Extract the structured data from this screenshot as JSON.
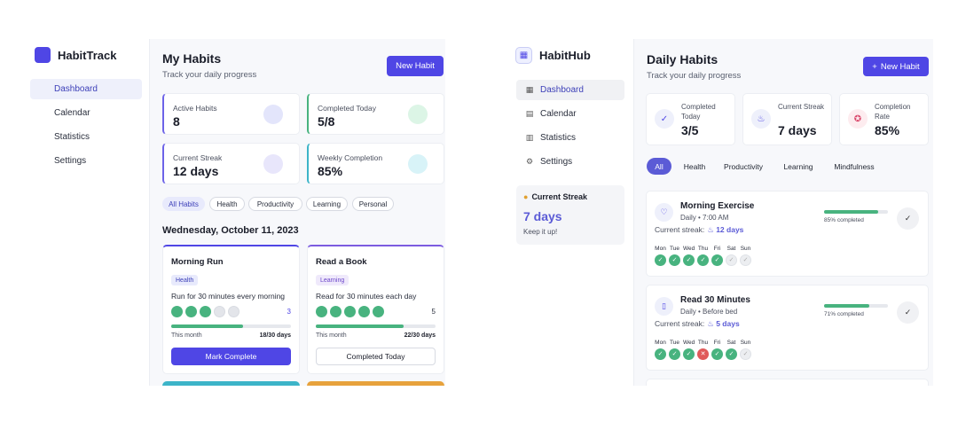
{
  "left": {
    "brand": "HabitTrack",
    "nav": [
      "Dashboard",
      "Calendar",
      "Statistics",
      "Settings"
    ],
    "title": "My Habits",
    "subtitle": "Track your daily progress",
    "new_button": "New Habit",
    "stats": [
      {
        "label": "Active Habits",
        "value": "8",
        "accent": "#6d63e8",
        "circle": "#e3e5fb"
      },
      {
        "label": "Completed Today",
        "value": "5/8",
        "accent": "#48b37f",
        "circle": "#dcf5e6"
      },
      {
        "label": "Current Streak",
        "value": "12 days",
        "accent": "#6d63e8",
        "circle": "#e8e6fb"
      },
      {
        "label": "Weekly Completion",
        "value": "85%",
        "accent": "#3cb4c8",
        "circle": "#d8f3f8"
      }
    ],
    "filters": [
      "All Habits",
      "Health",
      "Productivity",
      "Learning",
      "Personal"
    ],
    "date": "Wednesday, October 11, 2023",
    "habits": [
      {
        "title": "Morning Run",
        "tag": "Health",
        "desc": "Run for 30 minutes every morning",
        "count": "3",
        "done": 3,
        "month_label": "This month",
        "days": "18/30 days",
        "progress": 0.6,
        "button": "Mark Complete",
        "primary": true
      },
      {
        "title": "Read a Book",
        "tag": "Learning",
        "desc": "Read for 30 minutes each day",
        "count": "5",
        "done": 5,
        "month_label": "This month",
        "days": "22/30 days",
        "progress": 0.73,
        "button": "Completed Today",
        "primary": false
      }
    ]
  },
  "right": {
    "brand": "HabitHub",
    "nav": [
      "Dashboard",
      "Calendar",
      "Statistics",
      "Settings"
    ],
    "streak_title": "Current Streak",
    "streak_value": "7 days",
    "streak_note": "Keep it up!",
    "title": "Daily Habits",
    "subtitle": "Track your daily progress",
    "new_button": "New Habit",
    "stats": [
      {
        "label": "Completed Today",
        "value": "3/5",
        "icon": "check-circle-icon"
      },
      {
        "label": "Current Streak",
        "value": "7 days",
        "icon": "flame-icon"
      },
      {
        "label": "Completion Rate",
        "value": "85%",
        "icon": "award-icon"
      }
    ],
    "tabs": [
      "All",
      "Health",
      "Productivity",
      "Learning",
      "Mindfulness"
    ],
    "habits": [
      {
        "name": "Morning Exercise",
        "freq": "Daily • 7:00 AM",
        "streak_label": "Current streak:",
        "streak": "12 days",
        "progress": 0.85,
        "progress_text": "85% completed",
        "week": [
          "Mon",
          "Tue",
          "Wed",
          "Thu",
          "Fri",
          "Sat",
          "Sun"
        ],
        "status": [
          "y",
          "y",
          "y",
          "y",
          "y",
          "n",
          "n"
        ]
      },
      {
        "name": "Read 30 Minutes",
        "freq": "Daily • Before bed",
        "streak_label": "Current streak:",
        "streak": "5 days",
        "progress": 0.71,
        "progress_text": "71% completed",
        "week": [
          "Mon",
          "Tue",
          "Wed",
          "Thu",
          "Fri",
          "Sat",
          "Sun"
        ],
        "status": [
          "y",
          "y",
          "y",
          "x",
          "y",
          "y",
          "n"
        ]
      }
    ]
  }
}
